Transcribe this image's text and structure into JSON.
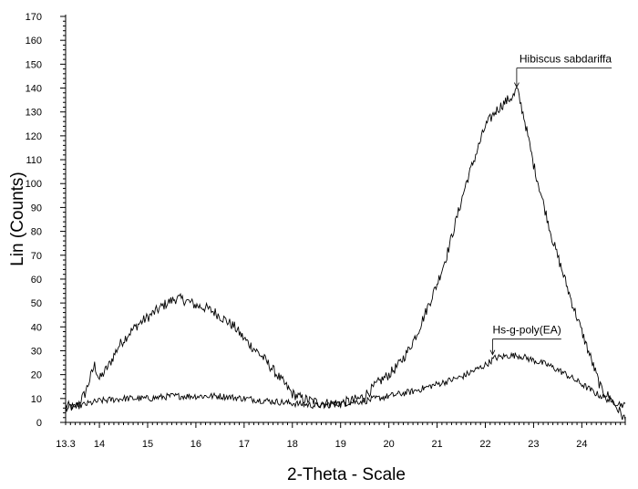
{
  "chart_data": {
    "type": "line",
    "title": "",
    "xlabel": "2-Theta - Scale",
    "ylabel": "Lin (Counts)",
    "xlim": [
      13.3,
      24.9
    ],
    "ylim": [
      0,
      170
    ],
    "x_tick_labels": [
      "13.3",
      "14",
      "15",
      "16",
      "17",
      "18",
      "19",
      "20",
      "21",
      "22",
      "23",
      "24"
    ],
    "y_tick_labels": [
      "0",
      "10",
      "20",
      "30",
      "40",
      "50",
      "60",
      "70",
      "80",
      "90",
      "100",
      "110",
      "120",
      "130",
      "140",
      "150",
      "160",
      "170"
    ],
    "grid": false,
    "series": [
      {
        "name": "Hibiscus sabdariffa",
        "color": "#000000",
        "x": [
          13.3,
          13.5,
          13.7,
          13.9,
          14.0,
          14.2,
          14.4,
          14.6,
          14.8,
          15.0,
          15.2,
          15.4,
          15.6,
          15.8,
          16.0,
          16.2,
          16.4,
          16.6,
          16.8,
          17.0,
          17.2,
          17.4,
          17.6,
          17.8,
          18.0,
          18.2,
          18.4,
          18.6,
          18.8,
          19.0,
          19.2,
          19.4,
          19.6,
          19.8,
          20.0,
          20.2,
          20.4,
          20.6,
          20.8,
          21.0,
          21.2,
          21.4,
          21.6,
          21.8,
          22.0,
          22.2,
          22.4,
          22.6,
          22.65,
          22.8,
          23.0,
          23.2,
          23.4,
          23.6,
          23.8,
          24.0,
          24.2,
          24.4,
          24.6,
          24.8,
          24.9
        ],
        "y": [
          7,
          6,
          12,
          24,
          18,
          24,
          32,
          37,
          41,
          44,
          47,
          50,
          52,
          51,
          49,
          48,
          46,
          43,
          40,
          35,
          31,
          27,
          22,
          17,
          12,
          10,
          9,
          8,
          8,
          8,
          9,
          10,
          13,
          17,
          20,
          24,
          30,
          38,
          48,
          58,
          70,
          85,
          100,
          112,
          124,
          130,
          134,
          137,
          140,
          128,
          108,
          92,
          76,
          63,
          50,
          38,
          26,
          14,
          10,
          4,
          1
        ]
      },
      {
        "name": "Hs-g-poly(EA)",
        "color": "#000000",
        "x": [
          13.3,
          13.6,
          14.0,
          14.5,
          15.0,
          15.5,
          16.0,
          16.5,
          17.0,
          17.5,
          18.0,
          18.5,
          19.0,
          19.5,
          20.0,
          20.5,
          21.0,
          21.5,
          22.0,
          22.2,
          22.5,
          22.7,
          23.0,
          23.3,
          23.6,
          24.0,
          24.3,
          24.6,
          24.9
        ],
        "y": [
          6,
          7,
          9,
          10,
          10,
          11,
          11,
          11,
          10,
          9,
          8,
          7,
          8,
          9,
          11,
          13,
          16,
          19,
          24,
          27,
          28,
          28,
          26,
          24,
          21,
          16,
          12,
          9,
          7
        ]
      }
    ],
    "annotations": [
      {
        "text": "Hibiscus sabdariffa",
        "x": 22.65,
        "y": 140
      },
      {
        "text": "Hs-g-poly(EA)",
        "x": 22.15,
        "y": 28
      }
    ]
  }
}
